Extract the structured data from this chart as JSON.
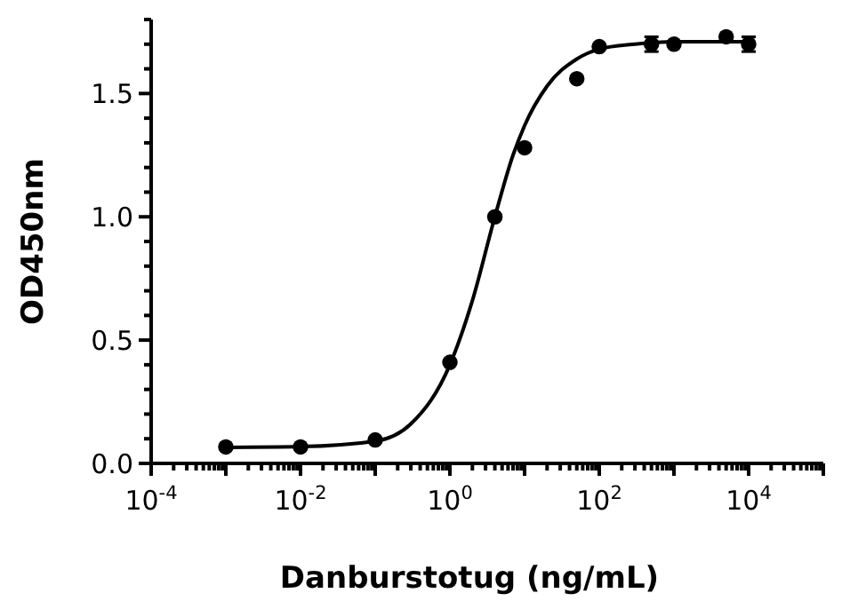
{
  "chart_data": {
    "type": "scatter",
    "xlabel": "Danburstotug (ng/mL)",
    "ylabel": "OD450nm",
    "log": "x",
    "marker": "circle",
    "grid": false,
    "xlim": [
      0.0001,
      100000
    ],
    "ylim": [
      0,
      1.8
    ],
    "xticks": [
      {
        "value": 0.0001,
        "label": "10$^{-4}$"
      },
      {
        "value": 0.0002,
        "label": null
      },
      {
        "value": 0.0003,
        "label": null
      },
      {
        "value": 0.0004,
        "label": null
      },
      {
        "value": 0.0005,
        "label": null
      },
      {
        "value": 0.0006,
        "label": null
      },
      {
        "value": 0.0007,
        "label": null
      },
      {
        "value": 0.0008,
        "label": null
      },
      {
        "value": 0.0009,
        "label": null
      },
      {
        "value": 0.001,
        "label": null
      },
      {
        "value": 0.002,
        "label": null
      },
      {
        "value": 0.003,
        "label": null
      },
      {
        "value": 0.004,
        "label": null
      },
      {
        "value": 0.005,
        "label": null
      },
      {
        "value": 0.006,
        "label": null
      },
      {
        "value": 0.007,
        "label": null
      },
      {
        "value": 0.008,
        "label": null
      },
      {
        "value": 0.009,
        "label": null
      },
      {
        "value": 0.01,
        "label": "10$^{-2}$"
      },
      {
        "value": 0.02,
        "label": null
      },
      {
        "value": 0.03,
        "label": null
      },
      {
        "value": 0.04,
        "label": null
      },
      {
        "value": 0.05,
        "label": null
      },
      {
        "value": 0.06,
        "label": null
      },
      {
        "value": 0.07,
        "label": null
      },
      {
        "value": 0.08,
        "label": null
      },
      {
        "value": 0.09,
        "label": null
      },
      {
        "value": 0.1,
        "label": null
      },
      {
        "value": 0.2,
        "label": null
      },
      {
        "value": 0.3,
        "label": null
      },
      {
        "value": 0.4,
        "label": null
      },
      {
        "value": 0.5,
        "label": null
      },
      {
        "value": 0.6,
        "label": null
      },
      {
        "value": 0.7,
        "label": null
      },
      {
        "value": 0.8,
        "label": null
      },
      {
        "value": 0.9,
        "label": null
      },
      {
        "value": 1,
        "label": "10$^{0}$"
      },
      {
        "value": 2,
        "label": null
      },
      {
        "value": 3,
        "label": null
      },
      {
        "value": 4,
        "label": null
      },
      {
        "value": 5,
        "label": null
      },
      {
        "value": 6,
        "label": null
      },
      {
        "value": 7,
        "label": null
      },
      {
        "value": 8,
        "label": null
      },
      {
        "value": 9,
        "label": null
      },
      {
        "value": 10,
        "label": null
      },
      {
        "value": 20,
        "label": null
      },
      {
        "value": 30,
        "label": null
      },
      {
        "value": 40,
        "label": null
      },
      {
        "value": 50,
        "label": null
      },
      {
        "value": 60,
        "label": null
      },
      {
        "value": 70,
        "label": null
      },
      {
        "value": 80,
        "label": null
      },
      {
        "value": 90,
        "label": null
      },
      {
        "value": 100,
        "label": "10$^{2}$"
      },
      {
        "value": 200,
        "label": null
      },
      {
        "value": 300,
        "label": null
      },
      {
        "value": 400,
        "label": null
      },
      {
        "value": 500,
        "label": null
      },
      {
        "value": 600,
        "label": null
      },
      {
        "value": 700,
        "label": null
      },
      {
        "value": 800,
        "label": null
      },
      {
        "value": 900,
        "label": null
      },
      {
        "value": 1000,
        "label": null
      },
      {
        "value": 2000,
        "label": null
      },
      {
        "value": 3000,
        "label": null
      },
      {
        "value": 4000,
        "label": null
      },
      {
        "value": 5000,
        "label": null
      },
      {
        "value": 6000,
        "label": null
      },
      {
        "value": 7000,
        "label": null
      },
      {
        "value": 8000,
        "label": null
      },
      {
        "value": 9000,
        "label": null
      },
      {
        "value": 10000,
        "label": "10$^{4}$"
      },
      {
        "value": 20000,
        "label": null
      },
      {
        "value": 30000,
        "label": null
      },
      {
        "value": 40000,
        "label": null
      },
      {
        "value": 50000,
        "label": null
      },
      {
        "value": 60000,
        "label": null
      },
      {
        "value": 70000,
        "label": null
      },
      {
        "value": 80000,
        "label": null
      },
      {
        "value": 90000,
        "label": null
      },
      {
        "value": 100000,
        "label": null
      }
    ],
    "yticks": [
      {
        "value": 0,
        "label": "0.0"
      },
      {
        "value": 0.1,
        "label": null
      },
      {
        "value": 0.2,
        "label": null
      },
      {
        "value": 0.3,
        "label": null
      },
      {
        "value": 0.4,
        "label": null
      },
      {
        "value": 0.5,
        "label": "0.5"
      },
      {
        "value": 0.6,
        "label": null
      },
      {
        "value": 0.7,
        "label": null
      },
      {
        "value": 0.8,
        "label": null
      },
      {
        "value": 0.9,
        "label": null
      },
      {
        "value": 1,
        "label": "1.0"
      },
      {
        "value": 1.1,
        "label": null
      },
      {
        "value": 1.2,
        "label": null
      },
      {
        "value": 1.3,
        "label": null
      },
      {
        "value": 1.4,
        "label": null
      },
      {
        "value": 1.5,
        "label": "1.5"
      },
      {
        "value": 1.6,
        "label": null
      },
      {
        "value": 1.7,
        "label": null
      },
      {
        "value": 1.8,
        "label": null
      }
    ],
    "series": [
      {
        "color": "#000000",
        "x": [
          0.001,
          0.01,
          0.1,
          1,
          4,
          10,
          50,
          100,
          500,
          1000,
          5000,
          10000
        ],
        "values": [
          0.067,
          0.067,
          0.095,
          0.41,
          1.0,
          1.28,
          1.56,
          1.69,
          1.7,
          1.7,
          1.73,
          1.7
        ],
        "errors": [
          null,
          null,
          null,
          null,
          null,
          null,
          null,
          null,
          0.03,
          null,
          null,
          0.03
        ]
      },
      {
        "type": "line",
        "color": "#000000",
        "marker": "none",
        "line_style": "solid",
        "x": [
          0.001,
          0.01,
          0.1,
          0.3,
          1,
          2,
          4,
          7,
          10,
          20,
          50,
          100,
          300,
          1000,
          10000
        ],
        "values": [
          0.065,
          0.068,
          0.09,
          0.16,
          0.4,
          0.66,
          1.0,
          1.25,
          1.37,
          1.53,
          1.64,
          1.68,
          1.7,
          1.71,
          1.71
        ]
      }
    ]
  }
}
